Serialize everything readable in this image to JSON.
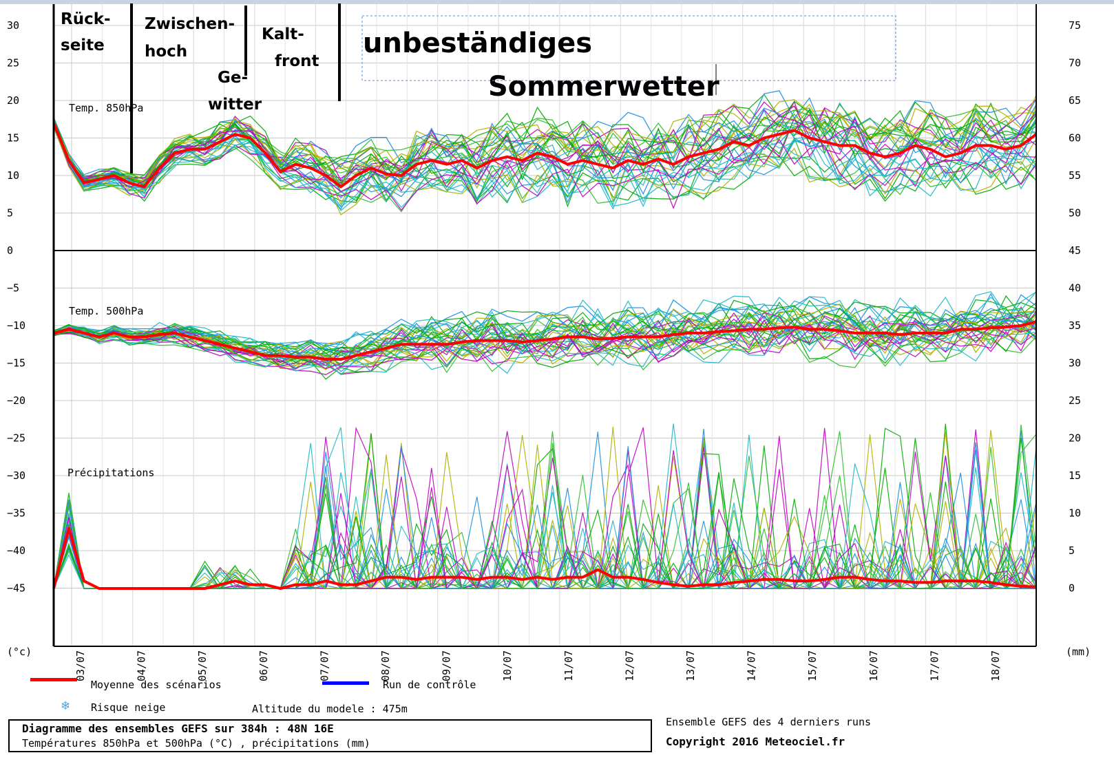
{
  "chart_data": {
    "type": "line",
    "ensemble_note": "",
    "left_axis": {
      "unit_label": "(°c)",
      "ticks": [
        30,
        25,
        20,
        15,
        10,
        5,
        0,
        -5,
        -10,
        -15,
        -20,
        -25,
        -30,
        -35,
        -40,
        -45
      ]
    },
    "right_axis": {
      "unit_label": "(mm)",
      "ticks": [
        75,
        70,
        65,
        60,
        55,
        50,
        45,
        40,
        35,
        30,
        25,
        20,
        15,
        10,
        5,
        0
      ]
    },
    "x_dates": [
      "03/07",
      "04/07",
      "05/07",
      "06/07",
      "07/07",
      "08/07",
      "09/07",
      "10/07",
      "11/07",
      "12/07",
      "13/07",
      "14/07",
      "15/07",
      "16/07",
      "17/07",
      "18/07"
    ],
    "panel_labels": {
      "t850": "Temp. 850hPa",
      "t500": "Temp. 500hPa",
      "precip": "Précipitations"
    },
    "mean_t850": {
      "name": "Moyenne des scénarios",
      "color": "#ff0000",
      "values": [
        17,
        12,
        9,
        9.5,
        10,
        9,
        8.5,
        11,
        13,
        13.5,
        13.5,
        14.5,
        15.5,
        15,
        13,
        10.5,
        11.5,
        11,
        10,
        8.5,
        10,
        11,
        10.2,
        10,
        11.5,
        12,
        11.5,
        12,
        11,
        12,
        12.5,
        12,
        13,
        12.5,
        11.5,
        12,
        11.5,
        11,
        12,
        11.5,
        12.2,
        11.5,
        12.5,
        13,
        13.5,
        14.5,
        14,
        15,
        15.5,
        16,
        15,
        14.5,
        14,
        14,
        13,
        12.5,
        13,
        14,
        13.5,
        12.5,
        13,
        14,
        14,
        13.5,
        14,
        15.5
      ]
    },
    "mean_t500": {
      "name": "Moyenne des scénarios",
      "color": "#ff0000",
      "values": [
        -11,
        -10.5,
        -11,
        -11.5,
        -11,
        -11.5,
        -11.5,
        -11.2,
        -11,
        -11.5,
        -12,
        -12.5,
        -13,
        -13.5,
        -14,
        -14,
        -14.2,
        -14.2,
        -14.5,
        -14.5,
        -14,
        -13.5,
        -13,
        -12.5,
        -12.5,
        -12.5,
        -12.5,
        -12.2,
        -12,
        -12,
        -12,
        -12.2,
        -12,
        -11.8,
        -11.5,
        -11.5,
        -11.8,
        -11.7,
        -11.5,
        -11.5,
        -11.5,
        -11.2,
        -11,
        -11,
        -10.8,
        -10.7,
        -10.5,
        -10.5,
        -10.3,
        -10.2,
        -10.5,
        -10.5,
        -10.7,
        -11,
        -11,
        -11,
        -11.2,
        -11,
        -11,
        -11,
        -10.5,
        -10.5,
        -10.3,
        -10.2,
        -10,
        -9.5
      ]
    },
    "mean_precip": {
      "name": "Moyenne des scénarios",
      "color": "#ff0000",
      "values": [
        0,
        8,
        1,
        0,
        0,
        0,
        0,
        0,
        0,
        0,
        0,
        0.5,
        1,
        0.5,
        0.5,
        0,
        0.5,
        0.5,
        1,
        0.5,
        0.5,
        1,
        1.5,
        1.5,
        1.2,
        1.5,
        1.5,
        1.5,
        1.2,
        1.5,
        1.5,
        1.2,
        1.5,
        1.2,
        1.5,
        1.5,
        2.5,
        1.5,
        1.5,
        1.2,
        0.8,
        0.5,
        0.3,
        0.5,
        0.5,
        0.8,
        1,
        1.2,
        1.2,
        1,
        1,
        1.2,
        1.5,
        1.5,
        1.2,
        1,
        1,
        0.8,
        0.8,
        1,
        1,
        1,
        0.8,
        0.5,
        0.3,
        0.2
      ]
    },
    "member_colors": [
      "#00aa00",
      "#1fb8c8",
      "#b0b000",
      "#c000c0",
      "#1c8fe0",
      "#2fbd2f"
    ]
  },
  "annotations": [
    "Rück-",
    "seite",
    "Zwischen-",
    "hoch",
    "Ge-",
    "witter",
    "Kalt-",
    "front",
    "unbeständiges",
    "Sommerwetter"
  ],
  "legend": {
    "mean_label": "Moyenne des scénarios",
    "control_label": "Run de contrôle",
    "snow_label": "Risque neige",
    "altitude": "Altitude du modele : 475m",
    "mean_color": "#ff0000",
    "control_color": "#0000ff"
  },
  "infobox": {
    "line1": "Diagramme des ensembles GEFS sur 384h : 48N 16E",
    "line2": "Températures 850hPa et 500hPa (°C) , précipitations (mm)"
  },
  "footer": {
    "ensemble_note": "Ensemble GEFS des 4 derniers runs",
    "copyright": "Copyright 2016 Meteociel.fr"
  }
}
